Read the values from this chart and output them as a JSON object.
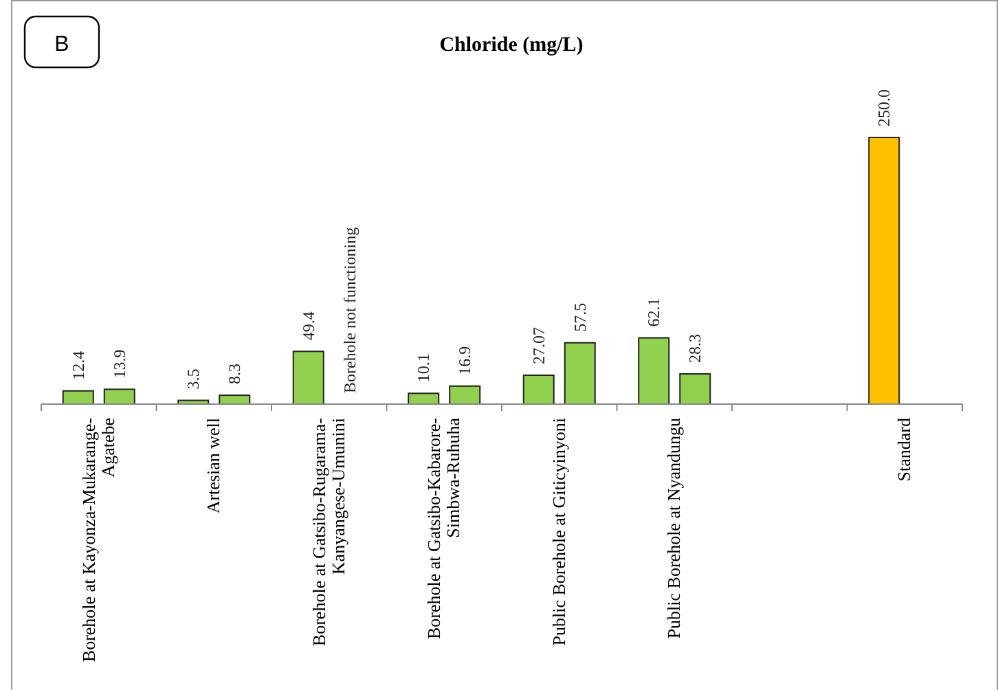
{
  "chart_data": {
    "type": "bar",
    "title": "Chloride (mg/L)",
    "categories": [
      "Borehole at Kayonza-Mukarange-Agatebe",
      "Artesian well",
      "Borehole at Gatsibo-Rugarama-Kanyangese-Umunini",
      "Borehole at Gatsibo-Kabarore-Simbwa-Ruhuha",
      "Public Borehole at Giticyinyoni",
      "Public Borehole at Nyandungu",
      null,
      "Standard"
    ],
    "series": [
      {
        "colors": [
          "#92d050",
          "#92d050",
          "#92d050",
          "#92d050",
          "#92d050",
          "#92d050",
          null,
          "#ffc000"
        ],
        "values": [
          12.4,
          3.5,
          49.4,
          10.1,
          27.07,
          62.1,
          null,
          250.0
        ],
        "value_labels": [
          "12.4",
          "3.5",
          "49.4",
          "10.1",
          "27.07",
          "62.1",
          null,
          "250.0"
        ]
      },
      {
        "color": "#92d050",
        "values": [
          13.9,
          8.3,
          null,
          16.9,
          57.5,
          28.3,
          null,
          null
        ],
        "value_labels": [
          "13.9",
          "8.3",
          null,
          "16.9",
          "57.5",
          "28.3",
          null,
          null
        ]
      }
    ],
    "annotations": [
      "B",
      "Borehole not functioning"
    ],
    "grid": false
  }
}
